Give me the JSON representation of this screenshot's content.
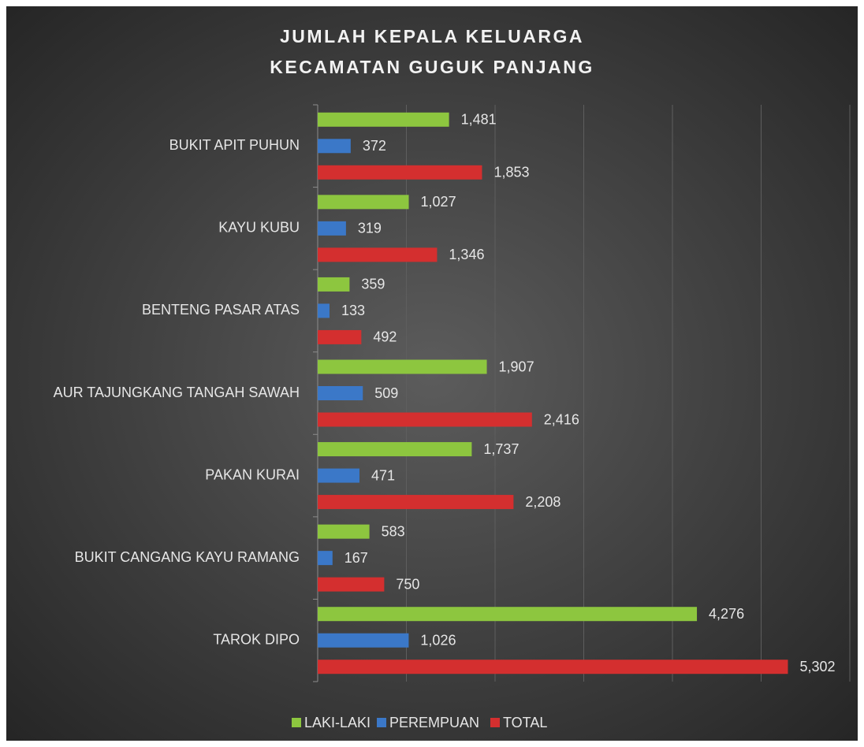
{
  "chart_data": {
    "type": "hbar",
    "title": "JUMLAH KEPALA KELUARGA",
    "subtitle": "KECAMATAN GUGUK PANJANG",
    "categories": [
      "BUKIT APIT PUHUN",
      "KAYU KUBU",
      "BENTENG PASAR ATAS",
      "AUR TAJUNGKANG TANGAH SAWAH",
      "PAKAN KURAI",
      "BUKIT CANGANG KAYU RAMANG",
      "TAROK DIPO"
    ],
    "series": [
      {
        "name": "LAKI-LAKI",
        "color": "#8dc63f",
        "values": [
          1481,
          1027,
          359,
          1907,
          1737,
          583,
          4276
        ],
        "value_labels": [
          "1,481",
          "1,027",
          "359",
          "1,907",
          "1,737",
          "583",
          "4,276"
        ]
      },
      {
        "name": "PEREMPUAN",
        "color": "#3b78c8",
        "values": [
          372,
          319,
          133,
          509,
          471,
          167,
          1026
        ],
        "value_labels": [
          "372",
          "319",
          "133",
          "509",
          "471",
          "167",
          "1,026"
        ]
      },
      {
        "name": "TOTAL",
        "color": "#d42f2f",
        "values": [
          1853,
          1346,
          492,
          2416,
          2208,
          750,
          5302
        ],
        "value_labels": [
          "1,853",
          "1,346",
          "492",
          "2,416",
          "2,208",
          "750",
          "5,302"
        ]
      }
    ],
    "xlim": [
      0,
      6000
    ],
    "xticks": [
      0,
      1000,
      2000,
      3000,
      4000,
      5000,
      6000
    ],
    "grid": true,
    "legend": "bottom"
  }
}
